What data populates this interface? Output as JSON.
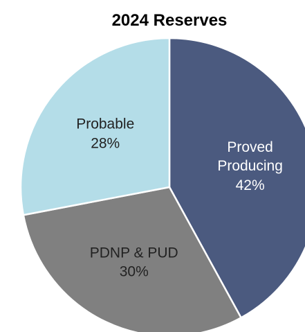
{
  "chart_data": {
    "type": "pie",
    "title": "2024 Reserves",
    "categories": [
      "Proved Producing",
      "PDNP & PUD",
      "Probable"
    ],
    "values": [
      42,
      30,
      28
    ],
    "value_labels": [
      "42%",
      "30%",
      "28%"
    ],
    "colors": [
      "#4b5a7f",
      "#808080",
      "#b4dde8"
    ]
  }
}
